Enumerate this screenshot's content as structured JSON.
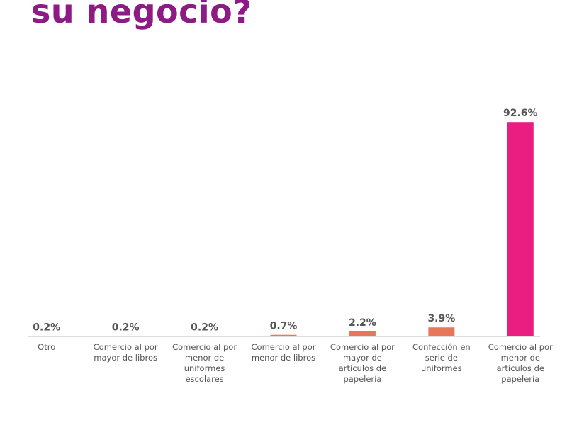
{
  "header": {
    "title": "su negocio?"
  },
  "chart_data": {
    "type": "bar",
    "title": "su negocio?",
    "categories": [
      "Otro",
      "Comercio al por mayor de libros",
      "Comercio al por menor de uniformes escolares",
      "Comercio al por menor de libros",
      "Comercio al por mayor de artículos de papelería",
      "Confección en serie de uniformes",
      "Comercio al por menor de artículos de papelería"
    ],
    "category_lines": [
      [
        "Otro"
      ],
      [
        "Comercio al por",
        "mayor de libros"
      ],
      [
        "Comercio al por",
        "menor de",
        "uniformes",
        "escolares"
      ],
      [
        "Comercio al por",
        "menor de libros"
      ],
      [
        "Comercio al por",
        "mayor de",
        "artículos de",
        "papelería"
      ],
      [
        "Confección en",
        "serie de",
        "uniformes"
      ],
      [
        "Comercio al por",
        "menor de",
        "artículos de",
        "papelería"
      ]
    ],
    "values": [
      0.2,
      0.2,
      0.2,
      0.7,
      2.2,
      3.9,
      92.6
    ],
    "value_labels": [
      "0.2%",
      "0.2%",
      "0.2%",
      "0.7%",
      "2.2%",
      "3.9%",
      "92.6%"
    ],
    "ylim": [
      0,
      100
    ],
    "grid": false,
    "colors": {
      "title": "#8e1a86",
      "bar_small": "#e8765a",
      "bar_max": "#e91e80",
      "axis": "#dddddd",
      "text": "#555555"
    }
  }
}
